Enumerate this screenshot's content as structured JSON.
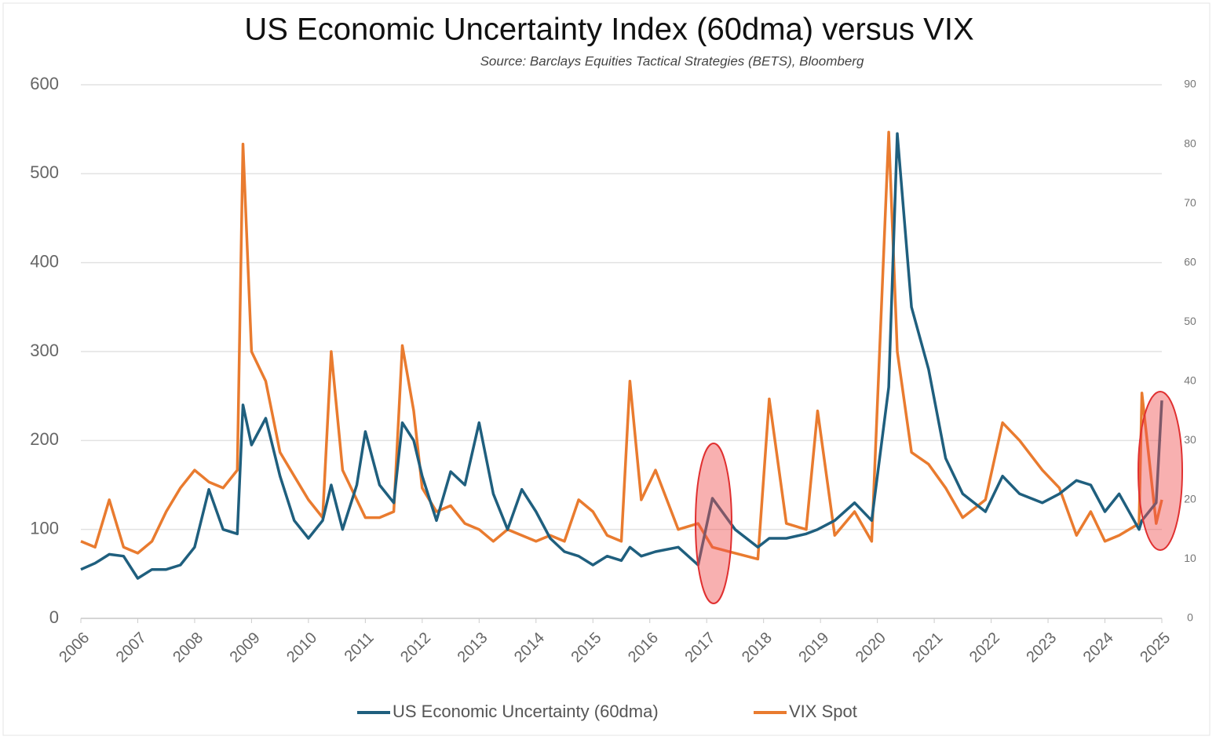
{
  "chart_data": {
    "type": "line",
    "title": "US Economic Uncertainty Index (60dma) versus VIX",
    "subtitle": "Source: Barclays Equities Tactical Strategies (BETS), Bloomberg",
    "x": [
      2006.0,
      2006.25,
      2006.5,
      2006.75,
      2007.0,
      2007.25,
      2007.5,
      2007.75,
      2008.0,
      2008.25,
      2008.5,
      2008.75,
      2008.85,
      2009.0,
      2009.25,
      2009.5,
      2009.75,
      2010.0,
      2010.25,
      2010.4,
      2010.6,
      2010.85,
      2011.0,
      2011.25,
      2011.5,
      2011.65,
      2011.85,
      2012.0,
      2012.25,
      2012.5,
      2012.75,
      2013.0,
      2013.25,
      2013.5,
      2013.75,
      2014.0,
      2014.25,
      2014.5,
      2014.75,
      2015.0,
      2015.25,
      2015.5,
      2015.65,
      2015.85,
      2016.1,
      2016.5,
      2016.85,
      2017.1,
      2017.5,
      2017.9,
      2018.1,
      2018.4,
      2018.75,
      2018.95,
      2019.25,
      2019.6,
      2019.9,
      2020.2,
      2020.35,
      2020.6,
      2020.9,
      2021.2,
      2021.5,
      2021.9,
      2022.2,
      2022.5,
      2022.9,
      2023.2,
      2023.5,
      2023.75,
      2024.0,
      2024.25,
      2024.6,
      2024.65,
      2024.9,
      2025.0
    ],
    "series": [
      {
        "name": "US Economic Uncertainty (60dma)",
        "color": "#1f5f7e",
        "values": [
          55,
          62,
          72,
          70,
          45,
          55,
          55,
          60,
          80,
          145,
          100,
          95,
          240,
          195,
          225,
          160,
          110,
          90,
          110,
          150,
          100,
          150,
          210,
          150,
          130,
          220,
          200,
          160,
          110,
          165,
          150,
          220,
          140,
          100,
          145,
          120,
          90,
          75,
          70,
          60,
          70,
          65,
          80,
          70,
          75,
          80,
          60,
          135,
          100,
          80,
          90,
          90,
          95,
          100,
          110,
          130,
          110,
          260,
          545,
          350,
          280,
          180,
          140,
          120,
          160,
          140,
          130,
          140,
          155,
          150,
          120,
          140,
          100,
          110,
          130,
          245
        ]
      },
      {
        "name": "VIX Spot",
        "color": "#e97b2f",
        "axis": "y2",
        "values": [
          13,
          12,
          20,
          12,
          11,
          13,
          18,
          22,
          25,
          23,
          22,
          25,
          80,
          45,
          40,
          28,
          24,
          20,
          17,
          45,
          25,
          20,
          17,
          17,
          18,
          46,
          35,
          22,
          18,
          19,
          16,
          15,
          13,
          15,
          14,
          13,
          14,
          13,
          20,
          18,
          14,
          13,
          40,
          20,
          25,
          15,
          16,
          12,
          11,
          10,
          37,
          16,
          15,
          35,
          14,
          18,
          13,
          82,
          45,
          28,
          26,
          22,
          17,
          20,
          33,
          30,
          25,
          22,
          14,
          18,
          13,
          14,
          16,
          38,
          16,
          20
        ]
      }
    ],
    "xlim": [
      2006,
      2025
    ],
    "xticks": [
      2006,
      2007,
      2008,
      2009,
      2010,
      2011,
      2012,
      2013,
      2014,
      2015,
      2016,
      2017,
      2018,
      2019,
      2020,
      2021,
      2022,
      2023,
      2024,
      2025
    ],
    "ylim": [
      0,
      600
    ],
    "yticks": [
      0,
      100,
      200,
      300,
      400,
      500,
      600
    ],
    "y2lim": [
      0,
      90
    ],
    "y2ticks": [
      0,
      10,
      20,
      30,
      40,
      50,
      60,
      70,
      80,
      90
    ],
    "grid": true,
    "legend": "bottom"
  }
}
